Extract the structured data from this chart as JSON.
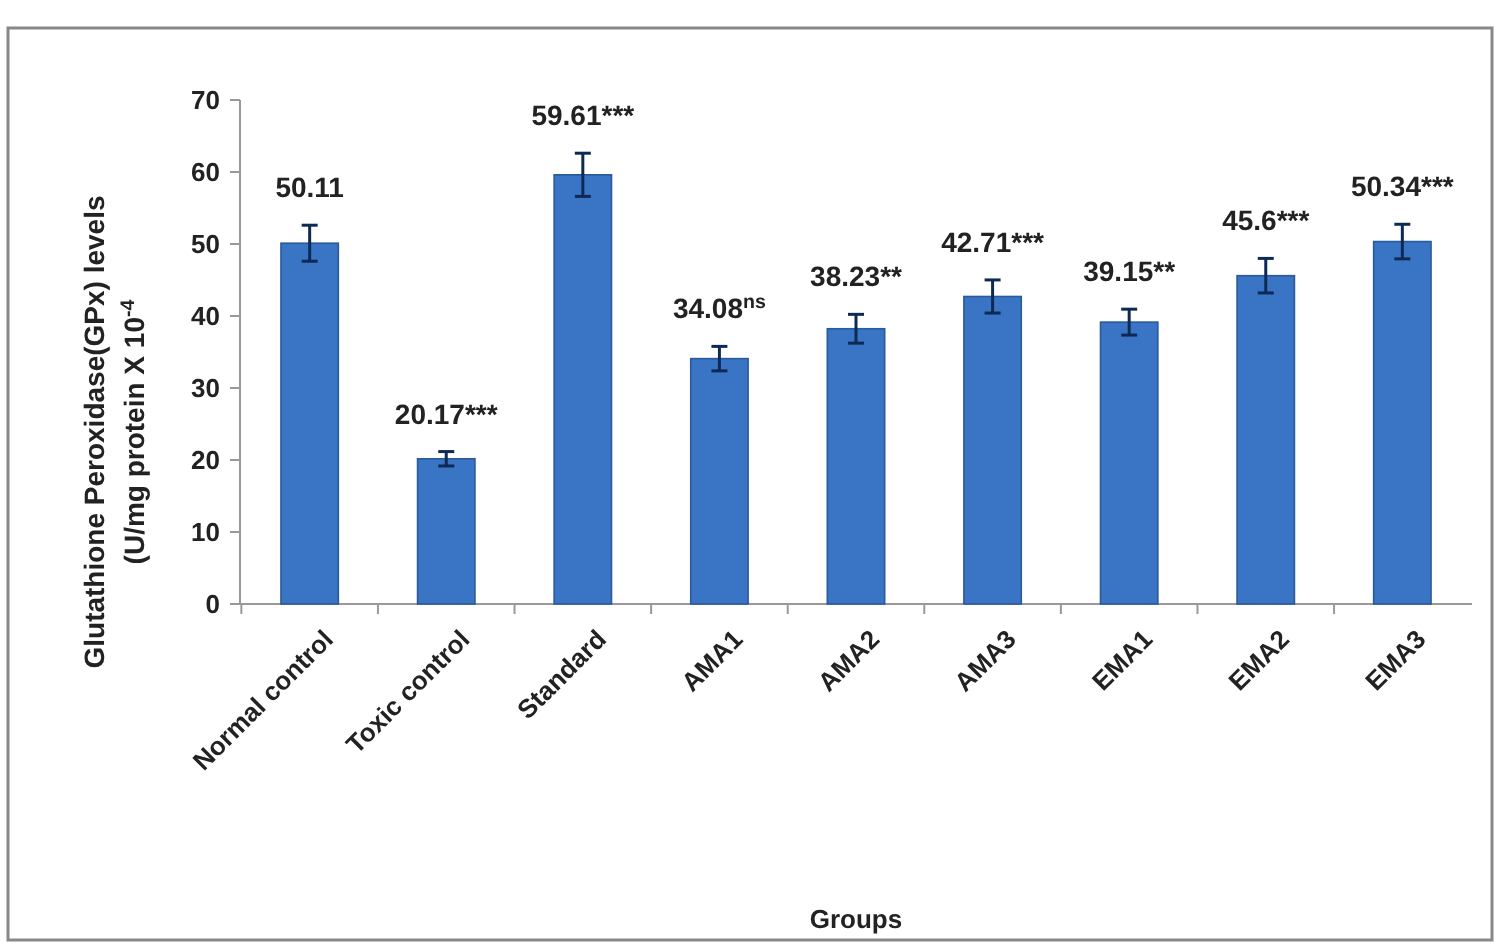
{
  "chart_data": {
    "type": "bar",
    "categories": [
      "Normal control",
      "Toxic control",
      "Standard",
      "AMA1",
      "AMA2",
      "AMA3",
      "EMA1",
      "EMA2",
      "EMA3"
    ],
    "values": [
      50.11,
      20.17,
      59.61,
      34.08,
      38.23,
      42.71,
      39.15,
      45.6,
      50.34
    ],
    "errors": [
      2.5,
      1,
      3,
      1.7,
      2,
      2.3,
      1.8,
      2.4,
      2.4
    ],
    "value_labels": [
      "50.11",
      "20.17***",
      "59.61***",
      "34.08$^{ns}$",
      "38.23**",
      "42.71***",
      "39.15**",
      "45.6***",
      "50.34***"
    ],
    "color": "#3a74c4",
    "xlabel": "Groups",
    "ylabel": "Glutathione Peroxidase(GPx) levels\n(U/mg protein X 10$^{-4}$",
    "ylim": [
      0,
      70
    ],
    "yticks": [
      0,
      10,
      20,
      30,
      40,
      50,
      60,
      70
    ],
    "grid": false
  }
}
